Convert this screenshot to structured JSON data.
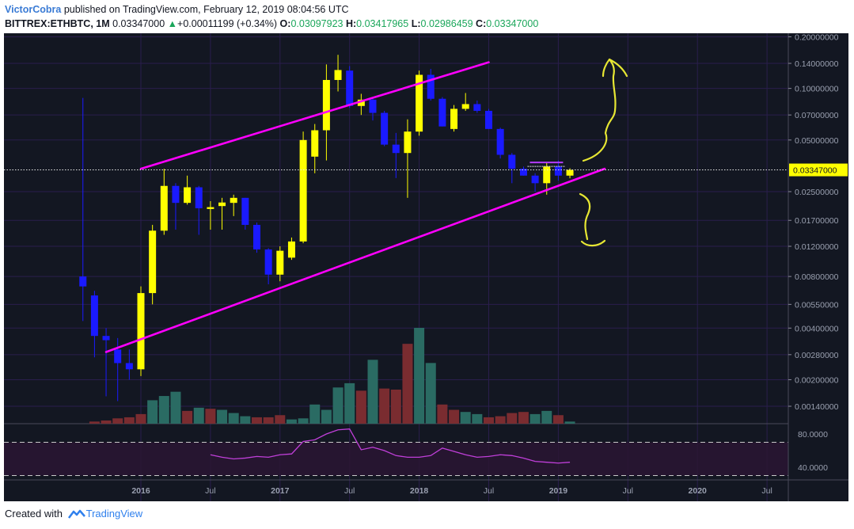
{
  "header": {
    "author": "VictorCobra",
    "published_text": "published on TradingView.com, February 12, 2019 08:04:56 UTC",
    "symbol": "BITTREX:ETHBTC, 1M",
    "last_price": "0.03347000",
    "change_arrow": "▲",
    "change": "+0.00011199 (+0.34%)",
    "open_label": "O:",
    "open": "0.03097923",
    "high_label": "H:",
    "high": "0.03417965",
    "low_label": "L:",
    "low": "0.02986459",
    "close_label": "C:",
    "close": "0.03347000"
  },
  "footer": {
    "created_with": "Created with",
    "brand": "TradingView"
  },
  "colors": {
    "background": "#131722",
    "grid": "#2a1e4d",
    "up_candle": "#ffff00",
    "down_candle": "#1a1aff",
    "channel": "#ff00ff",
    "annotation": "#e6e633",
    "volume_up": "#2a6b63",
    "volume_down": "#7a2c30",
    "rsi": "#c03fd9",
    "rsi_band": "#2a1533",
    "price_tag_bg": "#ffff00"
  },
  "chart_data": {
    "type": "candlestick",
    "title": "BITTREX:ETHBTC, 1M",
    "y_scale": "log",
    "ylim": [
      0.0011,
      0.22
    ],
    "y_ticks": [
      "0.20000000",
      "0.14000000",
      "0.10000000",
      "0.07000000",
      "0.05000000",
      "0.02500000",
      "0.01700000",
      "0.01200000",
      "0.00800000",
      "0.00550000",
      "0.00400000",
      "0.00280000",
      "0.00200000",
      "0.00140000"
    ],
    "x_ticks": [
      "2016",
      "Jul",
      "2017",
      "Jul",
      "2018",
      "Jul",
      "2019",
      "Jul",
      "2020",
      "Jul"
    ],
    "last_price_label": "0.03347000",
    "candles": [
      {
        "t": "2015-08",
        "o": 0.008,
        "h": 0.088,
        "l": 0.0044,
        "c": 0.007
      },
      {
        "t": "2015-09",
        "o": 0.0062,
        "h": 0.0066,
        "l": 0.0027,
        "c": 0.0036
      },
      {
        "t": "2015-10",
        "o": 0.0036,
        "h": 0.004,
        "l": 0.0016,
        "c": 0.0034
      },
      {
        "t": "2015-11",
        "o": 0.003,
        "h": 0.0035,
        "l": 0.0015,
        "c": 0.0025
      },
      {
        "t": "2015-12",
        "o": 0.0025,
        "h": 0.003,
        "l": 0.002,
        "c": 0.0023
      },
      {
        "t": "2016-01",
        "o": 0.0023,
        "h": 0.007,
        "l": 0.0021,
        "c": 0.0064
      },
      {
        "t": "2016-02",
        "o": 0.0064,
        "h": 0.016,
        "l": 0.0055,
        "c": 0.0148
      },
      {
        "t": "2016-03",
        "o": 0.0148,
        "h": 0.034,
        "l": 0.014,
        "c": 0.027
      },
      {
        "t": "2016-04",
        "o": 0.027,
        "h": 0.028,
        "l": 0.015,
        "c": 0.0215
      },
      {
        "t": "2016-05",
        "o": 0.0215,
        "h": 0.031,
        "l": 0.021,
        "c": 0.0265
      },
      {
        "t": "2016-06",
        "o": 0.0265,
        "h": 0.027,
        "l": 0.014,
        "c": 0.02
      },
      {
        "t": "2016-07",
        "o": 0.0198,
        "h": 0.022,
        "l": 0.015,
        "c": 0.0203
      },
      {
        "t": "2016-08",
        "o": 0.0206,
        "h": 0.023,
        "l": 0.015,
        "c": 0.0216
      },
      {
        "t": "2016-09",
        "o": 0.0215,
        "h": 0.024,
        "l": 0.018,
        "c": 0.023
      },
      {
        "t": "2016-10",
        "o": 0.023,
        "h": 0.023,
        "l": 0.015,
        "c": 0.016
      },
      {
        "t": "2016-11",
        "o": 0.016,
        "h": 0.0165,
        "l": 0.011,
        "c": 0.0115
      },
      {
        "t": "2016-12",
        "o": 0.0115,
        "h": 0.0117,
        "l": 0.0072,
        "c": 0.0082
      },
      {
        "t": "2017-01",
        "o": 0.0082,
        "h": 0.012,
        "l": 0.0075,
        "c": 0.0113
      },
      {
        "t": "2017-02",
        "o": 0.0103,
        "h": 0.0135,
        "l": 0.01,
        "c": 0.0128
      },
      {
        "t": "2017-03",
        "o": 0.0128,
        "h": 0.056,
        "l": 0.0125,
        "c": 0.05
      },
      {
        "t": "2017-04",
        "o": 0.04,
        "h": 0.062,
        "l": 0.032,
        "c": 0.057
      },
      {
        "t": "2017-05",
        "o": 0.057,
        "h": 0.138,
        "l": 0.038,
        "c": 0.112
      },
      {
        "t": "2017-06",
        "o": 0.112,
        "h": 0.157,
        "l": 0.096,
        "c": 0.128
      },
      {
        "t": "2017-07",
        "o": 0.127,
        "h": 0.135,
        "l": 0.077,
        "c": 0.079
      },
      {
        "t": "2017-08",
        "o": 0.079,
        "h": 0.093,
        "l": 0.07,
        "c": 0.086
      },
      {
        "t": "2017-09",
        "o": 0.086,
        "h": 0.089,
        "l": 0.065,
        "c": 0.072
      },
      {
        "t": "2017-10",
        "o": 0.072,
        "h": 0.074,
        "l": 0.046,
        "c": 0.047
      },
      {
        "t": "2017-11",
        "o": 0.047,
        "h": 0.055,
        "l": 0.03,
        "c": 0.042
      },
      {
        "t": "2017-12",
        "o": 0.042,
        "h": 0.066,
        "l": 0.023,
        "c": 0.056
      },
      {
        "t": "2018-01",
        "o": 0.056,
        "h": 0.127,
        "l": 0.053,
        "c": 0.12
      },
      {
        "t": "2018-02",
        "o": 0.12,
        "h": 0.13,
        "l": 0.085,
        "c": 0.087
      },
      {
        "t": "2018-03",
        "o": 0.087,
        "h": 0.089,
        "l": 0.06,
        "c": 0.06
      },
      {
        "t": "2018-04",
        "o": 0.058,
        "h": 0.08,
        "l": 0.056,
        "c": 0.076
      },
      {
        "t": "2018-05",
        "o": 0.076,
        "h": 0.094,
        "l": 0.074,
        "c": 0.081
      },
      {
        "t": "2018-06",
        "o": 0.081,
        "h": 0.085,
        "l": 0.072,
        "c": 0.074
      },
      {
        "t": "2018-07",
        "o": 0.074,
        "h": 0.076,
        "l": 0.058,
        "c": 0.058
      },
      {
        "t": "2018-08",
        "o": 0.058,
        "h": 0.059,
        "l": 0.039,
        "c": 0.041
      },
      {
        "t": "2018-09",
        "o": 0.041,
        "h": 0.042,
        "l": 0.028,
        "c": 0.034
      },
      {
        "t": "2018-10",
        "o": 0.034,
        "h": 0.035,
        "l": 0.031,
        "c": 0.031
      },
      {
        "t": "2018-11",
        "o": 0.031,
        "h": 0.032,
        "l": 0.025,
        "c": 0.028
      },
      {
        "t": "2018-12",
        "o": 0.028,
        "h": 0.037,
        "l": 0.024,
        "c": 0.035
      },
      {
        "t": "2019-01",
        "o": 0.035,
        "h": 0.038,
        "l": 0.029,
        "c": 0.031
      },
      {
        "t": "2019-02",
        "o": 0.031,
        "h": 0.0342,
        "l": 0.0299,
        "c": 0.0335
      }
    ],
    "volume": [
      {
        "t": "2015-09",
        "v": 2,
        "up": false
      },
      {
        "t": "2015-10",
        "v": 3,
        "up": false
      },
      {
        "t": "2015-11",
        "v": 5,
        "up": false
      },
      {
        "t": "2015-12",
        "v": 6,
        "up": false
      },
      {
        "t": "2016-01",
        "v": 9,
        "up": false
      },
      {
        "t": "2016-02",
        "v": 22,
        "up": true
      },
      {
        "t": "2016-03",
        "v": 26,
        "up": true
      },
      {
        "t": "2016-04",
        "v": 30,
        "up": true
      },
      {
        "t": "2016-05",
        "v": 12,
        "up": false
      },
      {
        "t": "2016-06",
        "v": 15,
        "up": true
      },
      {
        "t": "2016-07",
        "v": 14,
        "up": false
      },
      {
        "t": "2016-08",
        "v": 13,
        "up": true
      },
      {
        "t": "2016-09",
        "v": 10,
        "up": true
      },
      {
        "t": "2016-10",
        "v": 7,
        "up": true
      },
      {
        "t": "2016-11",
        "v": 6,
        "up": false
      },
      {
        "t": "2016-12",
        "v": 6,
        "up": false
      },
      {
        "t": "2017-01",
        "v": 8,
        "up": false
      },
      {
        "t": "2017-02",
        "v": 4,
        "up": true
      },
      {
        "t": "2017-03",
        "v": 5,
        "up": true
      },
      {
        "t": "2017-04",
        "v": 18,
        "up": true
      },
      {
        "t": "2017-05",
        "v": 13,
        "up": true
      },
      {
        "t": "2017-06",
        "v": 34,
        "up": true
      },
      {
        "t": "2017-07",
        "v": 38,
        "up": true
      },
      {
        "t": "2017-08",
        "v": 31,
        "up": false
      },
      {
        "t": "2017-09",
        "v": 60,
        "up": true
      },
      {
        "t": "2017-10",
        "v": 33,
        "up": false
      },
      {
        "t": "2017-11",
        "v": 32,
        "up": false
      },
      {
        "t": "2017-12",
        "v": 75,
        "up": false
      },
      {
        "t": "2018-01",
        "v": 90,
        "up": true
      },
      {
        "t": "2018-02",
        "v": 57,
        "up": true
      },
      {
        "t": "2018-03",
        "v": 18,
        "up": false
      },
      {
        "t": "2018-04",
        "v": 13,
        "up": false
      },
      {
        "t": "2018-05",
        "v": 11,
        "up": true
      },
      {
        "t": "2018-06",
        "v": 9,
        "up": true
      },
      {
        "t": "2018-07",
        "v": 6,
        "up": false
      },
      {
        "t": "2018-08",
        "v": 7,
        "up": false
      },
      {
        "t": "2018-09",
        "v": 10,
        "up": false
      },
      {
        "t": "2018-10",
        "v": 11,
        "up": false
      },
      {
        "t": "2018-11",
        "v": 9,
        "up": true
      },
      {
        "t": "2018-12",
        "v": 12,
        "up": true
      },
      {
        "t": "2019-01",
        "v": 8,
        "up": false
      },
      {
        "t": "2019-02",
        "v": 2,
        "up": true
      }
    ],
    "rsi": {
      "y_ticks": [
        "80.0000",
        "40.0000"
      ],
      "upper": 70,
      "lower": 30,
      "ylim": [
        25,
        90
      ],
      "values": [
        {
          "t": "2016-07",
          "v": 55
        },
        {
          "t": "2016-08",
          "v": 52
        },
        {
          "t": "2016-09",
          "v": 50
        },
        {
          "t": "2016-10",
          "v": 51
        },
        {
          "t": "2016-11",
          "v": 53
        },
        {
          "t": "2016-12",
          "v": 52
        },
        {
          "t": "2017-01",
          "v": 55
        },
        {
          "t": "2017-02",
          "v": 56
        },
        {
          "t": "2017-03",
          "v": 71
        },
        {
          "t": "2017-04",
          "v": 73
        },
        {
          "t": "2017-05",
          "v": 80
        },
        {
          "t": "2017-06",
          "v": 85
        },
        {
          "t": "2017-07",
          "v": 86
        },
        {
          "t": "2017-08",
          "v": 61
        },
        {
          "t": "2017-09",
          "v": 64
        },
        {
          "t": "2017-10",
          "v": 60
        },
        {
          "t": "2017-11",
          "v": 54
        },
        {
          "t": "2017-12",
          "v": 52
        },
        {
          "t": "2018-01",
          "v": 52
        },
        {
          "t": "2018-02",
          "v": 54
        },
        {
          "t": "2018-03",
          "v": 63
        },
        {
          "t": "2018-04",
          "v": 59
        },
        {
          "t": "2018-05",
          "v": 55
        },
        {
          "t": "2018-06",
          "v": 52
        },
        {
          "t": "2018-07",
          "v": 53
        },
        {
          "t": "2018-08",
          "v": 55
        },
        {
          "t": "2018-09",
          "v": 54
        },
        {
          "t": "2018-10",
          "v": 51
        },
        {
          "t": "2018-11",
          "v": 47
        },
        {
          "t": "2018-12",
          "v": 46
        },
        {
          "t": "2019-01",
          "v": 45
        },
        {
          "t": "2019-02",
          "v": 46
        }
      ]
    },
    "channel_lines": [
      {
        "name": "upper",
        "start": {
          "t": "2016-01",
          "price": 0.034
        },
        "end": {
          "t": "2018-07",
          "price": 0.142
        }
      },
      {
        "name": "lower",
        "start": {
          "t": "2015-10",
          "price": 0.0029
        },
        "end": {
          "t": "2019-05",
          "price": 0.034
        }
      }
    ],
    "horizontal_lines": [
      {
        "name": "resistance-short",
        "price": 0.037
      },
      {
        "name": "last-price",
        "price": 0.03347
      }
    ]
  }
}
